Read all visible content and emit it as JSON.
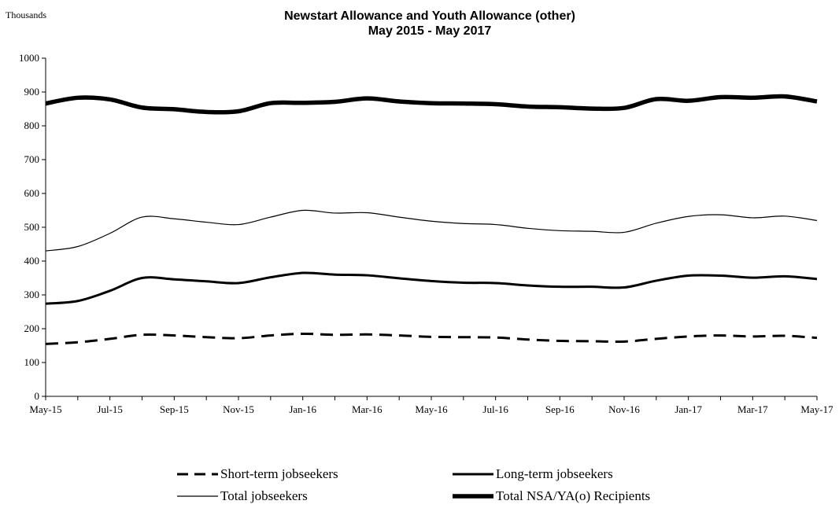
{
  "chart_data": {
    "type": "line",
    "title": "Newstart Allowance and Youth Allowance (other)",
    "subtitle": "May 2015 - May 2017",
    "y_unit_label": "Thousands",
    "xlabel": "",
    "ylabel": "",
    "ylim": [
      0,
      1000
    ],
    "yticks": [
      0,
      100,
      200,
      300,
      400,
      500,
      600,
      700,
      800,
      900,
      1000
    ],
    "x_months": [
      "May-15",
      "Jun-15",
      "Jul-15",
      "Aug-15",
      "Sep-15",
      "Oct-15",
      "Nov-15",
      "Dec-15",
      "Jan-16",
      "Feb-16",
      "Mar-16",
      "Apr-16",
      "May-16",
      "Jun-16",
      "Jul-16",
      "Aug-16",
      "Sep-16",
      "Oct-16",
      "Nov-16",
      "Dec-16",
      "Jan-17",
      "Feb-17",
      "Mar-17",
      "Apr-17",
      "May-17"
    ],
    "x_tick_labels": [
      "May-15",
      "Jul-15",
      "Sep-15",
      "Nov-15",
      "Jan-16",
      "Mar-16",
      "May-16",
      "Jul-16",
      "Sep-16",
      "Nov-16",
      "Jan-17",
      "Mar-17",
      "May-17"
    ],
    "grid": false,
    "legend_position": "bottom",
    "series": [
      {
        "name": "Short-term jobseekers",
        "style": "dashed",
        "weight": "medium",
        "values": [
          155,
          160,
          170,
          182,
          180,
          175,
          172,
          180,
          185,
          182,
          183,
          180,
          176,
          175,
          174,
          168,
          164,
          163,
          162,
          170,
          177,
          180,
          177,
          179,
          173
        ]
      },
      {
        "name": "Long-term jobseekers",
        "style": "solid",
        "weight": "medium",
        "values": [
          274,
          282,
          312,
          350,
          346,
          340,
          335,
          352,
          365,
          360,
          358,
          349,
          341,
          336,
          335,
          328,
          324,
          324,
          322,
          342,
          357,
          357,
          351,
          355,
          347
        ]
      },
      {
        "name": "Total jobseekers",
        "style": "solid",
        "weight": "thin",
        "values": [
          430,
          443,
          482,
          530,
          525,
          515,
          508,
          530,
          550,
          542,
          543,
          530,
          518,
          511,
          508,
          497,
          490,
          488,
          485,
          512,
          532,
          537,
          528,
          533,
          520
        ]
      },
      {
        "name": "Total NSA/YA(o) Recipients",
        "style": "solid",
        "weight": "heavy",
        "values": [
          866,
          883,
          878,
          854,
          849,
          841,
          843,
          867,
          868,
          871,
          881,
          872,
          867,
          866,
          864,
          857,
          855,
          851,
          853,
          879,
          874,
          885,
          883,
          887,
          872
        ]
      }
    ]
  }
}
